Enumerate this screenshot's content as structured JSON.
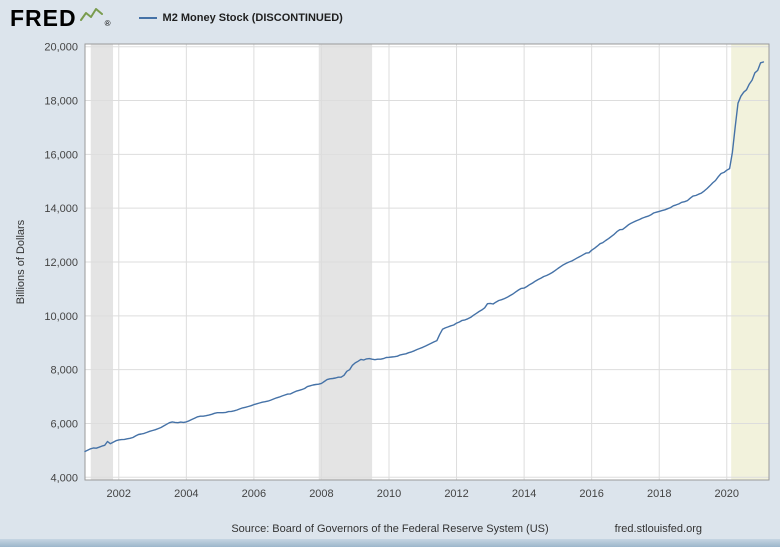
{
  "brand": {
    "logo_text": "FRED",
    "registered_mark": "®",
    "logo_icon": "sparkline-icon"
  },
  "legend": {
    "label": "M2 Money Stock (DISCONTINUED)"
  },
  "chart": {
    "ylabel": "Billions of Dollars"
  },
  "footer": {
    "source": "Source: Board of Governors of the Federal Reserve System (US)",
    "site": "fred.stlouisfed.org"
  },
  "colors": {
    "background": "#dce4ec",
    "plot_background": "#ffffff",
    "series_line": "#4572a7",
    "recession_band": "#e4e4e4",
    "highlight_band": "#f2f2dc",
    "gridline": "#dddddd",
    "logo_green": "#7a9c4e"
  },
  "chart_data": {
    "type": "line",
    "title": "M2 Money Stock (DISCONTINUED)",
    "series_name": "M2 Money Stock (DISCONTINUED)",
    "xlabel": "",
    "ylabel": "Billions of Dollars",
    "line_color": "#4572a7",
    "grid": true,
    "legend_position": "top-left",
    "xlim": [
      2001,
      2021.25
    ],
    "ylim": [
      3900,
      20100
    ],
    "xticks": [
      2002,
      2004,
      2006,
      2008,
      2010,
      2012,
      2014,
      2016,
      2018,
      2020
    ],
    "yticks": [
      4000,
      6000,
      8000,
      10000,
      12000,
      14000,
      16000,
      18000,
      20000
    ],
    "bands": [
      {
        "name": "recession-band-2001",
        "from": 2001.17,
        "to": 2001.83,
        "color": "#e4e4e4"
      },
      {
        "name": "recession-band-2008",
        "from": 2007.92,
        "to": 2009.5,
        "color": "#e4e4e4"
      },
      {
        "name": "highlight-band-2020",
        "from": 2020.13,
        "to": 2021.25,
        "color": "#f2f2dc"
      }
    ],
    "frequency": "monthly",
    "x_start": 2001.0,
    "x_step": 0.0833333,
    "unit": "Billions of Dollars",
    "values": [
      4960,
      5010,
      5060,
      5090,
      5080,
      5120,
      5160,
      5190,
      5330,
      5250,
      5300,
      5360,
      5390,
      5400,
      5410,
      5430,
      5450,
      5480,
      5540,
      5590,
      5610,
      5630,
      5670,
      5710,
      5740,
      5770,
      5810,
      5850,
      5910,
      5970,
      6030,
      6060,
      6040,
      6030,
      6050,
      6040,
      6060,
      6100,
      6150,
      6200,
      6250,
      6270,
      6270,
      6290,
      6310,
      6340,
      6380,
      6400,
      6400,
      6400,
      6410,
      6440,
      6450,
      6470,
      6500,
      6540,
      6580,
      6600,
      6630,
      6660,
      6700,
      6730,
      6760,
      6790,
      6810,
      6830,
      6870,
      6910,
      6950,
      6980,
      7020,
      7060,
      7090,
      7100,
      7150,
      7200,
      7230,
      7260,
      7300,
      7370,
      7400,
      7430,
      7450,
      7460,
      7490,
      7560,
      7630,
      7660,
      7670,
      7690,
      7720,
      7720,
      7790,
      7940,
      8000,
      8160,
      8250,
      8310,
      8380,
      8360,
      8400,
      8410,
      8390,
      8370,
      8390,
      8390,
      8410,
      8450,
      8460,
      8470,
      8480,
      8500,
      8550,
      8570,
      8590,
      8630,
      8660,
      8700,
      8750,
      8790,
      8830,
      8880,
      8930,
      8980,
      9030,
      9080,
      9310,
      9500,
      9550,
      9590,
      9630,
      9660,
      9730,
      9770,
      9830,
      9850,
      9890,
      9940,
      10020,
      10090,
      10160,
      10220,
      10300,
      10450,
      10460,
      10440,
      10510,
      10570,
      10600,
      10640,
      10690,
      10750,
      10810,
      10890,
      10960,
      11020,
      11030,
      11090,
      11160,
      11220,
      11290,
      11350,
      11400,
      11460,
      11500,
      11550,
      11610,
      11680,
      11760,
      11830,
      11900,
      11950,
      12000,
      12040,
      12100,
      12160,
      12210,
      12270,
      12330,
      12340,
      12440,
      12510,
      12590,
      12680,
      12720,
      12800,
      12870,
      12950,
      13030,
      13130,
      13200,
      13210,
      13290,
      13380,
      13440,
      13490,
      13540,
      13580,
      13630,
      13670,
      13700,
      13750,
      13820,
      13850,
      13880,
      13910,
      13940,
      13980,
      14020,
      14090,
      14120,
      14160,
      14220,
      14240,
      14280,
      14370,
      14450,
      14470,
      14520,
      14560,
      14640,
      14730,
      14830,
      14940,
      15030,
      15170,
      15290,
      15330,
      15410,
      15470,
      16080,
      17020,
      17900,
      18160,
      18310,
      18400,
      18610,
      18760,
      19030,
      19120,
      19400,
      19430
    ]
  }
}
